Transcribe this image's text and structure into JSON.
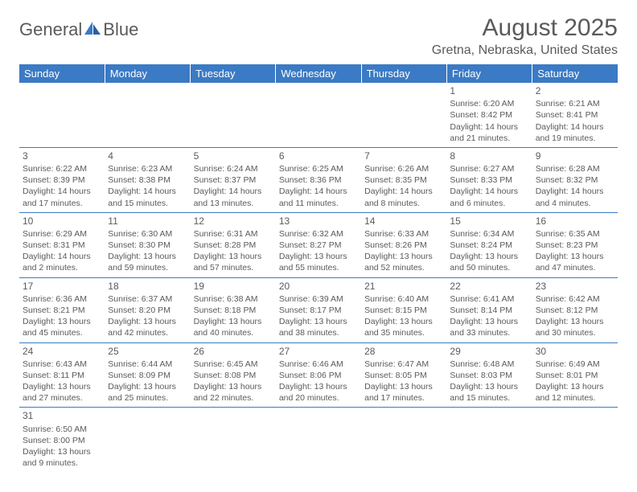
{
  "logo": {
    "part1": "General",
    "part2": "Blue"
  },
  "title": "August 2025",
  "location": "Gretna, Nebraska, United States",
  "colors": {
    "header_bg": "#3b7ac4",
    "header_text": "#ffffff",
    "text": "#5a5a5a",
    "rule": "#3b7ac4",
    "background": "#ffffff"
  },
  "typography": {
    "title_fontsize": 30,
    "location_fontsize": 16,
    "dayheader_fontsize": 13,
    "cell_fontsize": 10.5
  },
  "day_headers": [
    "Sunday",
    "Monday",
    "Tuesday",
    "Wednesday",
    "Thursday",
    "Friday",
    "Saturday"
  ],
  "weeks": [
    [
      null,
      null,
      null,
      null,
      null,
      {
        "n": "1",
        "sunrise": "Sunrise: 6:20 AM",
        "sunset": "Sunset: 8:42 PM",
        "daylight": "Daylight: 14 hours and 21 minutes."
      },
      {
        "n": "2",
        "sunrise": "Sunrise: 6:21 AM",
        "sunset": "Sunset: 8:41 PM",
        "daylight": "Daylight: 14 hours and 19 minutes."
      }
    ],
    [
      {
        "n": "3",
        "sunrise": "Sunrise: 6:22 AM",
        "sunset": "Sunset: 8:39 PM",
        "daylight": "Daylight: 14 hours and 17 minutes."
      },
      {
        "n": "4",
        "sunrise": "Sunrise: 6:23 AM",
        "sunset": "Sunset: 8:38 PM",
        "daylight": "Daylight: 14 hours and 15 minutes."
      },
      {
        "n": "5",
        "sunrise": "Sunrise: 6:24 AM",
        "sunset": "Sunset: 8:37 PM",
        "daylight": "Daylight: 14 hours and 13 minutes."
      },
      {
        "n": "6",
        "sunrise": "Sunrise: 6:25 AM",
        "sunset": "Sunset: 8:36 PM",
        "daylight": "Daylight: 14 hours and 11 minutes."
      },
      {
        "n": "7",
        "sunrise": "Sunrise: 6:26 AM",
        "sunset": "Sunset: 8:35 PM",
        "daylight": "Daylight: 14 hours and 8 minutes."
      },
      {
        "n": "8",
        "sunrise": "Sunrise: 6:27 AM",
        "sunset": "Sunset: 8:33 PM",
        "daylight": "Daylight: 14 hours and 6 minutes."
      },
      {
        "n": "9",
        "sunrise": "Sunrise: 6:28 AM",
        "sunset": "Sunset: 8:32 PM",
        "daylight": "Daylight: 14 hours and 4 minutes."
      }
    ],
    [
      {
        "n": "10",
        "sunrise": "Sunrise: 6:29 AM",
        "sunset": "Sunset: 8:31 PM",
        "daylight": "Daylight: 14 hours and 2 minutes."
      },
      {
        "n": "11",
        "sunrise": "Sunrise: 6:30 AM",
        "sunset": "Sunset: 8:30 PM",
        "daylight": "Daylight: 13 hours and 59 minutes."
      },
      {
        "n": "12",
        "sunrise": "Sunrise: 6:31 AM",
        "sunset": "Sunset: 8:28 PM",
        "daylight": "Daylight: 13 hours and 57 minutes."
      },
      {
        "n": "13",
        "sunrise": "Sunrise: 6:32 AM",
        "sunset": "Sunset: 8:27 PM",
        "daylight": "Daylight: 13 hours and 55 minutes."
      },
      {
        "n": "14",
        "sunrise": "Sunrise: 6:33 AM",
        "sunset": "Sunset: 8:26 PM",
        "daylight": "Daylight: 13 hours and 52 minutes."
      },
      {
        "n": "15",
        "sunrise": "Sunrise: 6:34 AM",
        "sunset": "Sunset: 8:24 PM",
        "daylight": "Daylight: 13 hours and 50 minutes."
      },
      {
        "n": "16",
        "sunrise": "Sunrise: 6:35 AM",
        "sunset": "Sunset: 8:23 PM",
        "daylight": "Daylight: 13 hours and 47 minutes."
      }
    ],
    [
      {
        "n": "17",
        "sunrise": "Sunrise: 6:36 AM",
        "sunset": "Sunset: 8:21 PM",
        "daylight": "Daylight: 13 hours and 45 minutes."
      },
      {
        "n": "18",
        "sunrise": "Sunrise: 6:37 AM",
        "sunset": "Sunset: 8:20 PM",
        "daylight": "Daylight: 13 hours and 42 minutes."
      },
      {
        "n": "19",
        "sunrise": "Sunrise: 6:38 AM",
        "sunset": "Sunset: 8:18 PM",
        "daylight": "Daylight: 13 hours and 40 minutes."
      },
      {
        "n": "20",
        "sunrise": "Sunrise: 6:39 AM",
        "sunset": "Sunset: 8:17 PM",
        "daylight": "Daylight: 13 hours and 38 minutes."
      },
      {
        "n": "21",
        "sunrise": "Sunrise: 6:40 AM",
        "sunset": "Sunset: 8:15 PM",
        "daylight": "Daylight: 13 hours and 35 minutes."
      },
      {
        "n": "22",
        "sunrise": "Sunrise: 6:41 AM",
        "sunset": "Sunset: 8:14 PM",
        "daylight": "Daylight: 13 hours and 33 minutes."
      },
      {
        "n": "23",
        "sunrise": "Sunrise: 6:42 AM",
        "sunset": "Sunset: 8:12 PM",
        "daylight": "Daylight: 13 hours and 30 minutes."
      }
    ],
    [
      {
        "n": "24",
        "sunrise": "Sunrise: 6:43 AM",
        "sunset": "Sunset: 8:11 PM",
        "daylight": "Daylight: 13 hours and 27 minutes."
      },
      {
        "n": "25",
        "sunrise": "Sunrise: 6:44 AM",
        "sunset": "Sunset: 8:09 PM",
        "daylight": "Daylight: 13 hours and 25 minutes."
      },
      {
        "n": "26",
        "sunrise": "Sunrise: 6:45 AM",
        "sunset": "Sunset: 8:08 PM",
        "daylight": "Daylight: 13 hours and 22 minutes."
      },
      {
        "n": "27",
        "sunrise": "Sunrise: 6:46 AM",
        "sunset": "Sunset: 8:06 PM",
        "daylight": "Daylight: 13 hours and 20 minutes."
      },
      {
        "n": "28",
        "sunrise": "Sunrise: 6:47 AM",
        "sunset": "Sunset: 8:05 PM",
        "daylight": "Daylight: 13 hours and 17 minutes."
      },
      {
        "n": "29",
        "sunrise": "Sunrise: 6:48 AM",
        "sunset": "Sunset: 8:03 PM",
        "daylight": "Daylight: 13 hours and 15 minutes."
      },
      {
        "n": "30",
        "sunrise": "Sunrise: 6:49 AM",
        "sunset": "Sunset: 8:01 PM",
        "daylight": "Daylight: 13 hours and 12 minutes."
      }
    ],
    [
      {
        "n": "31",
        "sunrise": "Sunrise: 6:50 AM",
        "sunset": "Sunset: 8:00 PM",
        "daylight": "Daylight: 13 hours and 9 minutes."
      },
      null,
      null,
      null,
      null,
      null,
      null
    ]
  ]
}
